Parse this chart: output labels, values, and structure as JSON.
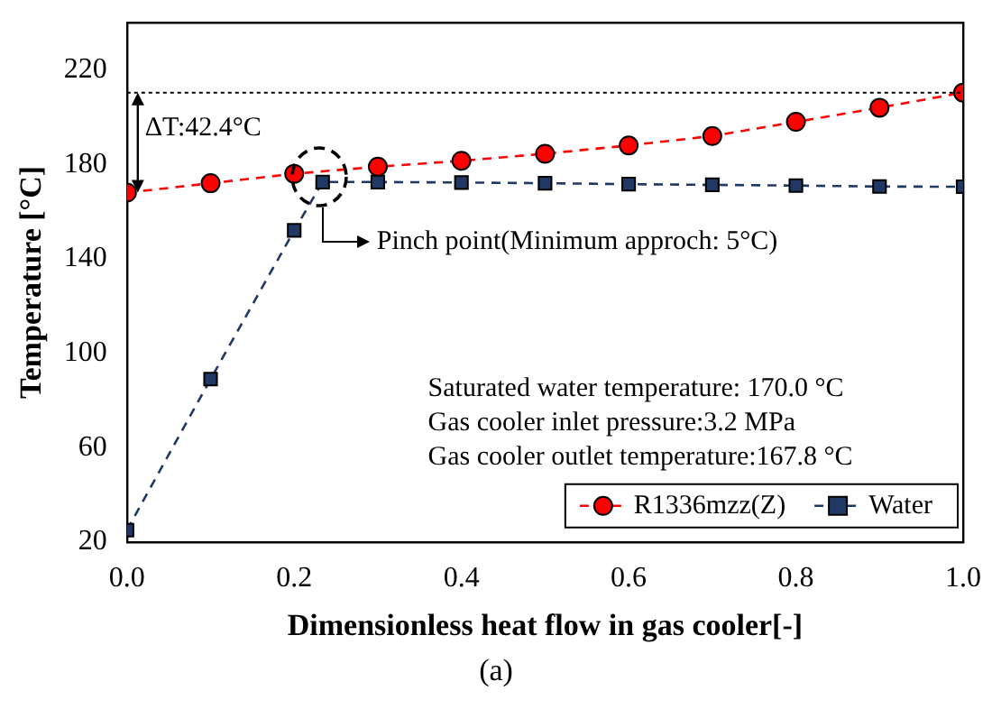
{
  "chart_data": {
    "type": "line",
    "xlabel": "Dimensionless heat flow in gas cooler[-]",
    "ylabel": "Temperature [°C]",
    "xlim": [
      0,
      1
    ],
    "xticks": [
      {
        "value": 0,
        "label": "0.0"
      },
      {
        "value": 0.2,
        "label": "0.2"
      },
      {
        "value": 0.4,
        "label": "0.4"
      },
      {
        "value": 0.6,
        "label": "0.6"
      },
      {
        "value": 0.8,
        "label": "0.8"
      },
      {
        "value": 1,
        "label": "1.0"
      }
    ],
    "ylim": [
      20,
      240
    ],
    "yticks": [
      20,
      60,
      100,
      140,
      180,
      220
    ],
    "grid": false,
    "legend": "bottom right",
    "line_style": "dashed",
    "series": [
      {
        "name": "R1336mzz(Z)",
        "color": "#ff0000",
        "marker": "circle",
        "x": [
          0,
          0.1,
          0.2,
          0.3,
          0.4,
          0.5,
          0.6,
          0.7,
          0.8,
          0.9,
          1.0
        ],
        "values": [
          168,
          172,
          176,
          179,
          181.5,
          184.5,
          188,
          192,
          198,
          204,
          210.4
        ]
      },
      {
        "name": "Water",
        "color": "#1f3864",
        "marker": "square",
        "x": [
          0,
          0.1,
          0.2,
          0.234,
          0.3,
          0.4,
          0.5,
          0.6,
          0.7,
          0.8,
          0.9,
          1.0
        ],
        "values": [
          25,
          89,
          152,
          172.5,
          172.5,
          172.3,
          172,
          171.6,
          171.3,
          171,
          170.6,
          170.5
        ]
      }
    ],
    "ref_lines": [
      {
        "axis": "y",
        "value": 210.4,
        "color": "#000000",
        "line_style": "dotted"
      }
    ],
    "annotations": [
      {
        "text": "ΔT:42.4°C",
        "x": 0,
        "y": 210.4
      },
      {
        "text": "Pinch point(Minimum approch: 5°C)",
        "x": 0.234,
        "y": 172.5
      },
      "Saturated water temperature: 170.0 °C",
      "Gas cooler inlet pressure:3.2 MPa",
      "Gas cooler outlet temperature:167.8 °C",
      "(a)"
    ]
  }
}
